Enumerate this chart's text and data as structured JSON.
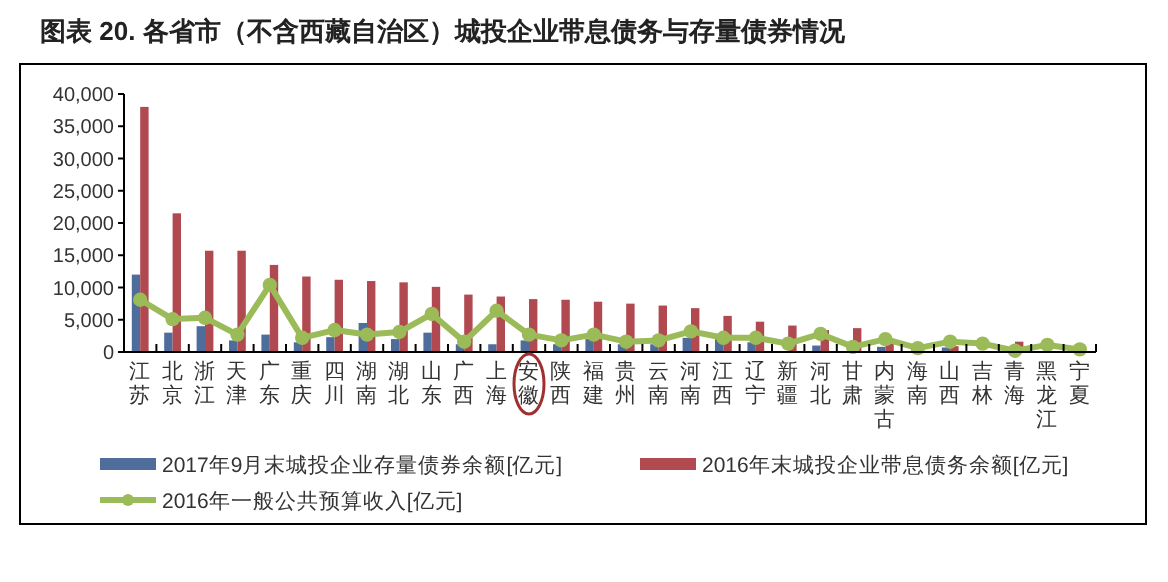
{
  "chart_data": {
    "type": "bar",
    "title": "图表 20. 各省市（不含西藏自治区）城投企业带息债务与存量债券情况",
    "categories": [
      "江苏",
      "北京",
      "浙江",
      "天津",
      "广东",
      "重庆",
      "四川",
      "湖南",
      "湖北",
      "山东",
      "广西",
      "上海",
      "安徽",
      "陕西",
      "福建",
      "贵州",
      "云南",
      "河南",
      "江西",
      "辽宁",
      "新疆",
      "河北",
      "甘肃",
      "内蒙古",
      "海南",
      "山西",
      "吉林",
      "青海",
      "黑龙江",
      "宁夏"
    ],
    "series": [
      {
        "name": "2017年9月末城投企业存量债券余额[亿元]",
        "color": "#4f6d9a",
        "values": [
          12000,
          3000,
          4000,
          1800,
          2700,
          1500,
          2300,
          4500,
          2000,
          3000,
          1200,
          1200,
          1800,
          1200,
          2000,
          1200,
          1200,
          2200,
          2000,
          1500,
          null,
          1000,
          null,
          800,
          null,
          700,
          null,
          null,
          null,
          null
        ]
      },
      {
        "name": "2016年末城投企业带息债务余额[亿元]",
        "color": "#b04a50",
        "values": [
          38000,
          21500,
          15700,
          15700,
          13500,
          11700,
          11200,
          11000,
          10800,
          10100,
          8900,
          8600,
          8200,
          8100,
          7800,
          7500,
          7200,
          6800,
          5600,
          4700,
          4100,
          3400,
          3700,
          1800,
          null,
          900,
          null,
          1600,
          null,
          null
        ]
      },
      {
        "name": "2016年一般公共预算收入[亿元]",
        "color": "#9bbb59",
        "type": "line",
        "marker": "circle",
        "values": [
          8100,
          5100,
          5300,
          2700,
          10400,
          2200,
          3400,
          2700,
          3100,
          5900,
          1600,
          6400,
          2700,
          1800,
          2700,
          1600,
          1800,
          3200,
          2200,
          2200,
          1300,
          2800,
          800,
          2000,
          600,
          1600,
          1300,
          200,
          1100,
          400
        ]
      }
    ],
    "ylim": [
      0,
      40000
    ],
    "yticks": [
      {
        "value": 0,
        "label": "0"
      },
      {
        "value": 5000,
        "label": "5,000"
      },
      {
        "value": 10000,
        "label": "10,000"
      },
      {
        "value": 15000,
        "label": "15,000"
      },
      {
        "value": 20000,
        "label": "20,000"
      },
      {
        "value": 25000,
        "label": "25,000"
      },
      {
        "value": 30000,
        "label": "30,000"
      },
      {
        "value": 35000,
        "label": "35,000"
      },
      {
        "value": 40000,
        "label": "40,000"
      }
    ],
    "grid": false,
    "legend": "bottom"
  }
}
